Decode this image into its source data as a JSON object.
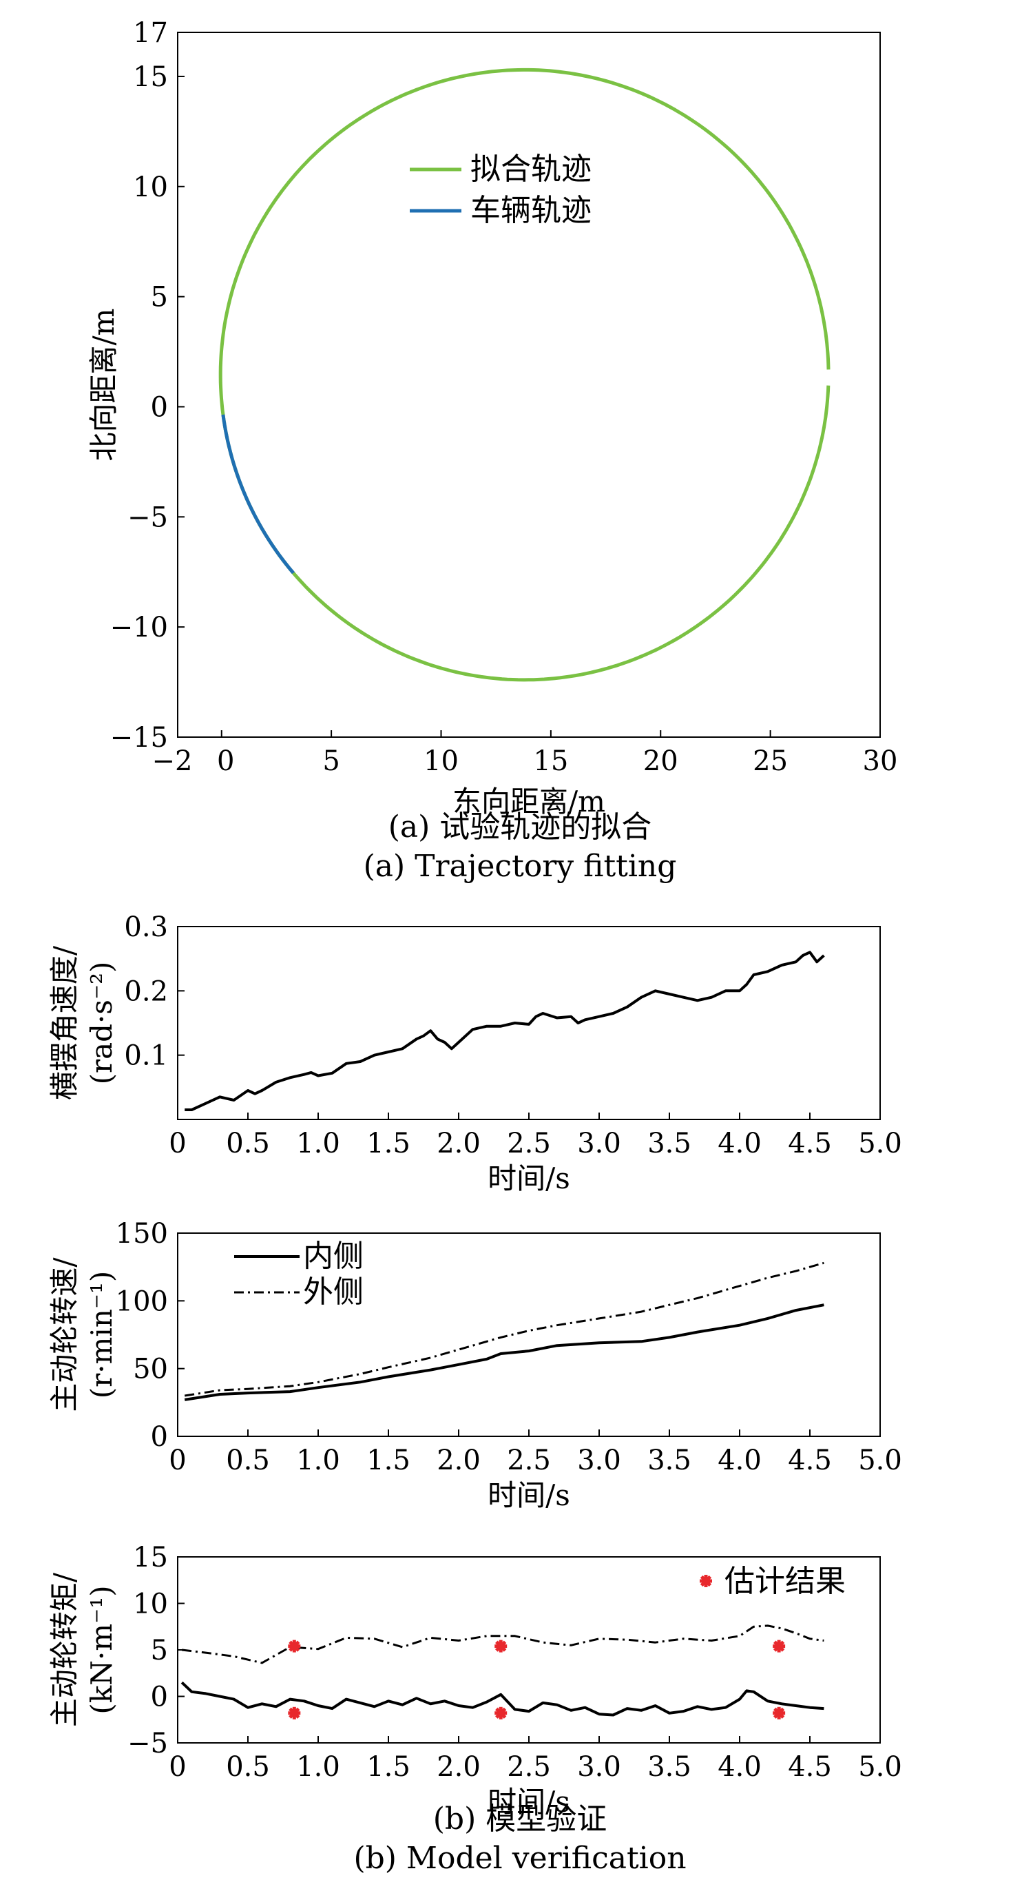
{
  "chart_data": [
    {
      "type": "line",
      "xlabel": "东向距离/m",
      "ylabel": "北向距离/m",
      "xlim": [
        -2,
        30
      ],
      "ylim": [
        -15,
        17
      ],
      "xticks": [
        "−2",
        "0",
        "5",
        "10",
        "15",
        "20",
        "25",
        "30"
      ],
      "yticks": [
        "−15",
        "−10",
        "−5",
        "0",
        "5",
        "10",
        "15",
        "17"
      ],
      "legend_position": "upper-center",
      "series": [
        {
          "name": "拟合轨迹",
          "color": "#7ac143",
          "shape": "circle",
          "center": [
            13.8,
            1.45
          ],
          "radius": 13.85,
          "theta_start_deg": 1,
          "theta_end_deg": 358
        },
        {
          "name": "车辆轨迹",
          "color": "#1f6fb2",
          "shape": "arc",
          "center": [
            13.8,
            1.45
          ],
          "radius": 13.85,
          "theta_start_deg": 187.5,
          "theta_end_deg": 220.5
        }
      ],
      "caption_cn": "(a) 试验轨迹的拟合",
      "caption_en": "(a) Trajectory fitting"
    },
    {
      "type": "line",
      "xlabel": "时间/s",
      "ylabel_line1": "横摆角速度/",
      "ylabel_line2": "(rad·s⁻²)",
      "xlim": [
        0,
        5.0
      ],
      "ylim": [
        0,
        0.3
      ],
      "xticks": [
        "0",
        "0.5",
        "1.0",
        "1.5",
        "2.0",
        "2.5",
        "3.0",
        "3.5",
        "4.0",
        "4.5",
        "5.0"
      ],
      "yticks": [
        "0.1",
        "0.2",
        "0.3"
      ],
      "series": [
        {
          "color": "#000000",
          "dash": "solid",
          "x": [
            0.05,
            0.1,
            0.2,
            0.3,
            0.4,
            0.5,
            0.55,
            0.6,
            0.7,
            0.8,
            0.9,
            0.95,
            1.0,
            1.1,
            1.2,
            1.3,
            1.4,
            1.5,
            1.6,
            1.7,
            1.75,
            1.8,
            1.85,
            1.9,
            1.95,
            2.0,
            2.1,
            2.2,
            2.3,
            2.4,
            2.5,
            2.55,
            2.6,
            2.7,
            2.8,
            2.85,
            2.9,
            3.0,
            3.1,
            3.2,
            3.3,
            3.4,
            3.5,
            3.6,
            3.7,
            3.8,
            3.9,
            4.0,
            4.05,
            4.1,
            4.2,
            4.3,
            4.4,
            4.45,
            4.5,
            4.55,
            4.6
          ],
          "y": [
            0.015,
            0.015,
            0.025,
            0.035,
            0.03,
            0.045,
            0.04,
            0.045,
            0.058,
            0.065,
            0.07,
            0.073,
            0.068,
            0.072,
            0.087,
            0.09,
            0.1,
            0.105,
            0.11,
            0.125,
            0.13,
            0.138,
            0.125,
            0.12,
            0.11,
            0.12,
            0.14,
            0.145,
            0.145,
            0.15,
            0.148,
            0.16,
            0.165,
            0.158,
            0.16,
            0.15,
            0.155,
            0.16,
            0.165,
            0.175,
            0.19,
            0.2,
            0.195,
            0.19,
            0.185,
            0.19,
            0.2,
            0.2,
            0.21,
            0.225,
            0.23,
            0.24,
            0.245,
            0.255,
            0.26,
            0.245,
            0.255
          ]
        }
      ]
    },
    {
      "type": "line",
      "xlabel": "时间/s",
      "ylabel_line1": "主动轮转速/",
      "ylabel_line2": "(r·min⁻¹)",
      "xlim": [
        0,
        5.0
      ],
      "ylim": [
        0,
        150
      ],
      "xticks": [
        "0",
        "0.5",
        "1.0",
        "1.5",
        "2.0",
        "2.5",
        "3.0",
        "3.5",
        "4.0",
        "4.5",
        "5.0"
      ],
      "yticks": [
        "0",
        "50",
        "100",
        "150"
      ],
      "legend_position": "upper-left",
      "series": [
        {
          "name": "内侧",
          "color": "#000000",
          "dash": "solid",
          "x": [
            0.05,
            0.3,
            0.5,
            0.8,
            1.0,
            1.3,
            1.5,
            1.8,
            2.0,
            2.2,
            2.3,
            2.5,
            2.7,
            3.0,
            3.3,
            3.5,
            3.7,
            4.0,
            4.2,
            4.4,
            4.6
          ],
          "y": [
            27,
            31,
            32,
            33,
            36,
            40,
            44,
            49,
            53,
            57,
            61,
            63,
            67,
            69,
            70,
            73,
            77,
            82,
            87,
            93,
            97
          ]
        },
        {
          "name": "外侧",
          "color": "#000000",
          "dash": "dashdot",
          "x": [
            0.05,
            0.3,
            0.5,
            0.8,
            1.0,
            1.3,
            1.5,
            1.8,
            2.0,
            2.2,
            2.3,
            2.5,
            2.7,
            3.0,
            3.3,
            3.5,
            3.7,
            4.0,
            4.2,
            4.4,
            4.6
          ],
          "y": [
            30,
            34,
            35,
            37,
            40,
            46,
            51,
            58,
            64,
            70,
            73,
            78,
            82,
            87,
            92,
            97,
            102,
            111,
            117,
            122,
            128
          ]
        }
      ]
    },
    {
      "type": "line",
      "xlabel": "时间/s",
      "ylabel_line1": "主动轮转矩/",
      "ylabel_line2": "(kN·m⁻¹)",
      "xlim": [
        0,
        5.0
      ],
      "ylim": [
        -5,
        15
      ],
      "xticks": [
        "0",
        "0.5",
        "1.0",
        "1.5",
        "2.0",
        "2.5",
        "3.0",
        "3.5",
        "4.0",
        "4.5",
        "5.0"
      ],
      "yticks": [
        "−5",
        "0",
        "5",
        "10",
        "15"
      ],
      "legend_position": "upper-right",
      "series": [
        {
          "color": "#000000",
          "dash": "solid",
          "x": [
            0.03,
            0.1,
            0.2,
            0.3,
            0.4,
            0.5,
            0.6,
            0.7,
            0.8,
            0.9,
            1.0,
            1.1,
            1.2,
            1.3,
            1.4,
            1.5,
            1.6,
            1.7,
            1.8,
            1.9,
            2.0,
            2.1,
            2.2,
            2.3,
            2.4,
            2.5,
            2.6,
            2.7,
            2.8,
            2.9,
            3.0,
            3.1,
            3.2,
            3.3,
            3.4,
            3.5,
            3.6,
            3.7,
            3.8,
            3.9,
            4.0,
            4.05,
            4.1,
            4.2,
            4.3,
            4.4,
            4.5,
            4.6
          ],
          "y": [
            1.5,
            0.5,
            0.3,
            0,
            -0.3,
            -1.2,
            -0.8,
            -1.1,
            -0.3,
            -0.5,
            -1,
            -1.3,
            -0.3,
            -0.7,
            -1.1,
            -0.5,
            -0.9,
            -0.2,
            -0.8,
            -0.5,
            -1,
            -1.2,
            -0.6,
            0.2,
            -1.4,
            -1.6,
            -0.7,
            -0.9,
            -1.5,
            -1.2,
            -1.9,
            -2,
            -1.3,
            -1.5,
            -1,
            -1.8,
            -1.6,
            -1.1,
            -1.4,
            -1.2,
            -0.3,
            0.6,
            0.5,
            -0.5,
            -0.8,
            -1,
            -1.2,
            -1.3
          ]
        },
        {
          "color": "#000000",
          "dash": "dashdot",
          "x": [
            0.03,
            0.2,
            0.4,
            0.6,
            0.8,
            1.0,
            1.2,
            1.4,
            1.6,
            1.8,
            2.0,
            2.2,
            2.4,
            2.6,
            2.8,
            3.0,
            3.2,
            3.4,
            3.6,
            3.8,
            4.0,
            4.1,
            4.2,
            4.3,
            4.4,
            4.5,
            4.6
          ],
          "y": [
            5,
            4.7,
            4.3,
            3.6,
            5.3,
            5.1,
            6.3,
            6.2,
            5.3,
            6.3,
            6,
            6.5,
            6.5,
            5.8,
            5.5,
            6.2,
            6.1,
            5.8,
            6.2,
            6,
            6.5,
            7.5,
            7.6,
            7.3,
            6.8,
            6.2,
            6
          ]
        },
        {
          "name": "估计结果",
          "color": "#e8282c",
          "mode": "markers",
          "x": [
            0.83,
            2.3,
            4.28,
            0.83,
            2.3,
            4.28
          ],
          "y": [
            5.4,
            5.4,
            5.4,
            -1.8,
            -1.8,
            -1.8
          ]
        }
      ],
      "caption_cn": "(b) 模型验证",
      "caption_en": "(b) Model verification"
    }
  ]
}
